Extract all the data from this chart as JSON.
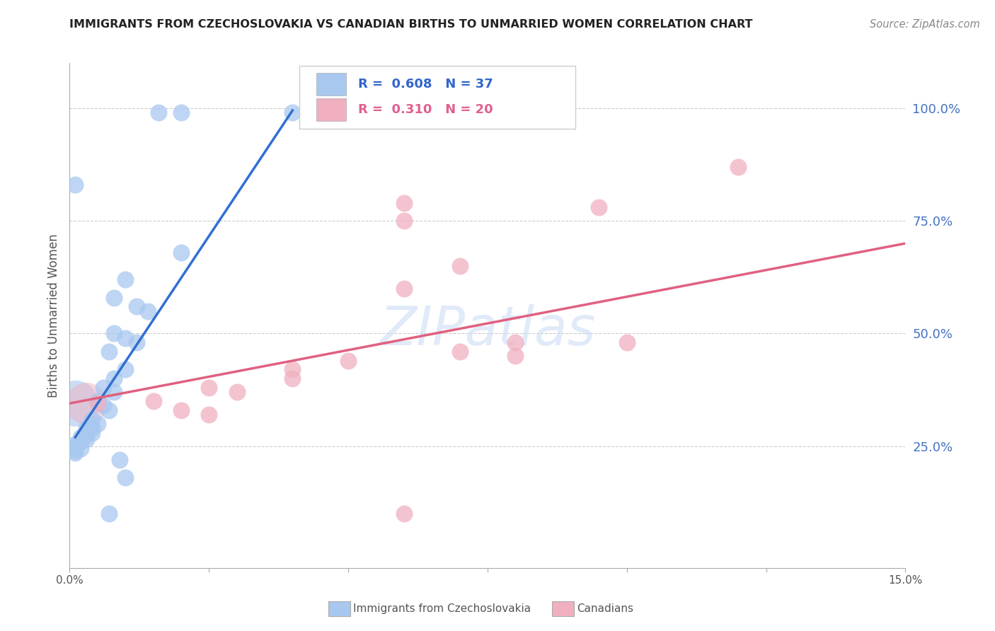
{
  "title": "IMMIGRANTS FROM CZECHOSLOVAKIA VS CANADIAN BIRTHS TO UNMARRIED WOMEN CORRELATION CHART",
  "source": "Source: ZipAtlas.com",
  "ylabel": "Births to Unmarried Women",
  "y_tick_labels": [
    "25.0%",
    "50.0%",
    "75.0%",
    "100.0%"
  ],
  "y_tick_values": [
    0.25,
    0.5,
    0.75,
    1.0
  ],
  "blue_r": 0.608,
  "blue_n": 37,
  "pink_r": 0.31,
  "pink_n": 20,
  "blue_color": "#a8c8f0",
  "pink_color": "#f0b0c0",
  "blue_line_color": "#3070d0",
  "pink_line_color": "#e06080",
  "watermark": "ZIPatlas",
  "legend_label_blue": "Immigrants from Czechoslovakia",
  "legend_label_pink": "Canadians",
  "xlim": [
    0.0,
    0.15
  ],
  "ylim": [
    -0.02,
    1.1
  ],
  "blue_dots": [
    [
      0.001,
      0.83
    ],
    [
      0.016,
      0.99
    ],
    [
      0.02,
      0.99
    ],
    [
      0.04,
      0.99
    ],
    [
      0.02,
      0.68
    ],
    [
      0.01,
      0.62
    ],
    [
      0.008,
      0.58
    ],
    [
      0.012,
      0.56
    ],
    [
      0.014,
      0.55
    ],
    [
      0.008,
      0.5
    ],
    [
      0.01,
      0.49
    ],
    [
      0.012,
      0.48
    ],
    [
      0.007,
      0.46
    ],
    [
      0.01,
      0.42
    ],
    [
      0.008,
      0.4
    ],
    [
      0.006,
      0.38
    ],
    [
      0.008,
      0.37
    ],
    [
      0.005,
      0.35
    ],
    [
      0.006,
      0.34
    ],
    [
      0.007,
      0.33
    ],
    [
      0.004,
      0.31
    ],
    [
      0.005,
      0.3
    ],
    [
      0.004,
      0.29
    ],
    [
      0.003,
      0.29
    ],
    [
      0.004,
      0.28
    ],
    [
      0.003,
      0.275
    ],
    [
      0.002,
      0.27
    ],
    [
      0.003,
      0.265
    ],
    [
      0.002,
      0.26
    ],
    [
      0.001,
      0.255
    ],
    [
      0.001,
      0.25
    ],
    [
      0.002,
      0.245
    ],
    [
      0.001,
      0.24
    ],
    [
      0.001,
      0.235
    ],
    [
      0.009,
      0.22
    ],
    [
      0.01,
      0.18
    ],
    [
      0.007,
      0.1
    ]
  ],
  "pink_dots": [
    [
      0.12,
      0.87
    ],
    [
      0.095,
      0.78
    ],
    [
      0.06,
      0.79
    ],
    [
      0.06,
      0.75
    ],
    [
      0.07,
      0.65
    ],
    [
      0.06,
      0.6
    ],
    [
      0.08,
      0.48
    ],
    [
      0.1,
      0.48
    ],
    [
      0.07,
      0.46
    ],
    [
      0.08,
      0.45
    ],
    [
      0.05,
      0.44
    ],
    [
      0.04,
      0.42
    ],
    [
      0.04,
      0.4
    ],
    [
      0.025,
      0.38
    ],
    [
      0.03,
      0.37
    ],
    [
      0.015,
      0.35
    ],
    [
      0.02,
      0.33
    ],
    [
      0.025,
      0.32
    ],
    [
      0.06,
      0.1
    ],
    [
      0.005,
      0.345
    ]
  ],
  "blue_line": [
    [
      0.001,
      0.27
    ],
    [
      0.04,
      0.995
    ]
  ],
  "pink_line": [
    [
      0.0,
      0.345
    ],
    [
      0.15,
      0.7
    ]
  ]
}
